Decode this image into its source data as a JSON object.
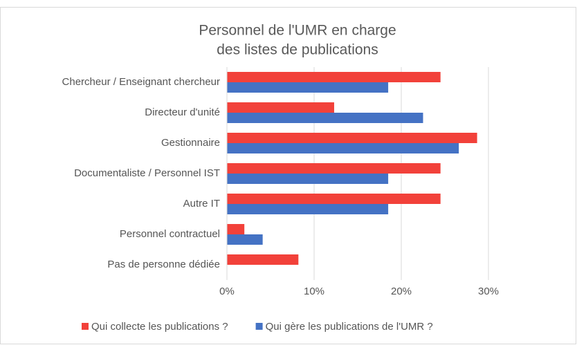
{
  "chart_data": {
    "type": "barh",
    "title": [
      "Personnel de l'UMR en charge",
      "des listes de publications"
    ],
    "categories": [
      "Chercheur / Enseignant chercheur",
      "Directeur d'unité",
      "Gestionnaire",
      "Documentaliste / Personnel IST",
      "Autre IT",
      "Personnel contractuel",
      "Pas de personne dédiée"
    ],
    "series": [
      {
        "name": "Qui collecte les publications ?",
        "color": "#f2413a",
        "values": [
          24.5,
          12.3,
          28.7,
          24.5,
          24.5,
          2.0,
          8.2
        ]
      },
      {
        "name": "Qui gère les publications de l'UMR ?",
        "color": "#4472c4",
        "values": [
          18.5,
          22.5,
          26.6,
          18.5,
          18.5,
          4.1,
          0
        ]
      }
    ],
    "xlim": [
      0,
      30
    ],
    "xticks": [
      {
        "value": 0,
        "label": "0%"
      },
      {
        "value": 10,
        "label": "10%"
      },
      {
        "value": 20,
        "label": "20%"
      },
      {
        "value": 30,
        "label": "30%"
      }
    ],
    "grid": true,
    "legend": "bottom"
  }
}
